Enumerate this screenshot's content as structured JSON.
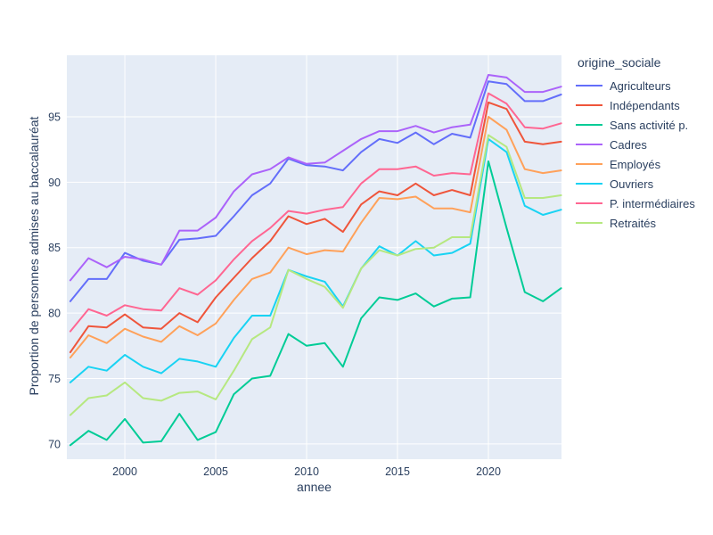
{
  "chart_data": {
    "type": "line",
    "title": "",
    "xlabel": "annee",
    "ylabel": "Proportion de personnes admises au baccalauréat",
    "legend_title": "origine_sociale",
    "legend_position": "right",
    "grid": true,
    "xlim": [
      1996.81,
      2024.02
    ],
    "ylim": [
      68.83,
      99.7
    ],
    "xticks": [
      2000,
      2005,
      2010,
      2015,
      2020
    ],
    "yticks": [
      70,
      75,
      80,
      85,
      90,
      95
    ],
    "colors": {
      "paper_bg": "#ffffff",
      "plot_bg": "#E5ECF6",
      "grid": "#ffffff",
      "text": "#2a3f5f"
    },
    "x": [
      1997,
      1998,
      1999,
      2000,
      2001,
      2002,
      2003,
      2004,
      2005,
      2006,
      2007,
      2008,
      2009,
      2010,
      2011,
      2012,
      2013,
      2014,
      2015,
      2016,
      2017,
      2018,
      2019,
      2020,
      2021,
      2022,
      2023,
      2024
    ],
    "series": [
      {
        "name": "Agriculteurs",
        "slug": "agriculteurs",
        "color": "#636EFA",
        "values": [
          80.9,
          82.6,
          82.6,
          84.6,
          84.0,
          83.7,
          85.6,
          85.7,
          85.9,
          87.4,
          89.0,
          89.9,
          91.8,
          91.3,
          91.2,
          90.9,
          92.3,
          93.3,
          93.0,
          93.8,
          92.9,
          93.7,
          93.4,
          97.7,
          97.5,
          96.2,
          96.2,
          96.7
        ]
      },
      {
        "name": "Indépendants",
        "slug": "independants",
        "color": "#EF553B",
        "values": [
          77.0,
          79.0,
          78.9,
          79.9,
          78.9,
          78.8,
          80.0,
          79.3,
          81.2,
          82.7,
          84.2,
          85.5,
          87.4,
          86.8,
          87.2,
          86.2,
          88.3,
          89.3,
          89.0,
          89.9,
          89.0,
          89.4,
          89.0,
          96.1,
          95.6,
          93.1,
          92.9,
          93.1
        ]
      },
      {
        "name": "Sans activité p.",
        "slug": "sans-activite-p",
        "color": "#00CC96",
        "values": [
          69.9,
          71.0,
          70.3,
          71.9,
          70.1,
          70.2,
          72.3,
          70.3,
          70.9,
          73.8,
          75.0,
          75.2,
          78.4,
          77.5,
          77.7,
          75.9,
          79.6,
          81.2,
          81.0,
          81.5,
          80.5,
          81.1,
          81.2,
          91.6,
          86.5,
          81.6,
          80.9,
          81.9
        ]
      },
      {
        "name": "Cadres",
        "slug": "cadres",
        "color": "#AB63FA",
        "values": [
          82.5,
          84.2,
          83.5,
          84.3,
          84.1,
          83.7,
          86.3,
          86.3,
          87.3,
          89.3,
          90.6,
          91.0,
          91.9,
          91.4,
          91.5,
          92.4,
          93.3,
          93.9,
          93.9,
          94.3,
          93.8,
          94.2,
          94.4,
          98.2,
          98.0,
          96.9,
          96.9,
          97.3
        ]
      },
      {
        "name": "Employés",
        "slug": "employes",
        "color": "#FFA15A",
        "values": [
          76.6,
          78.3,
          77.7,
          78.8,
          78.2,
          77.8,
          79.0,
          78.3,
          79.2,
          81.0,
          82.6,
          83.1,
          85.0,
          84.5,
          84.8,
          84.7,
          86.9,
          88.8,
          88.7,
          88.9,
          88.0,
          88.0,
          87.7,
          95.0,
          94.0,
          91.0,
          90.7,
          90.9
        ]
      },
      {
        "name": "Ouvriers",
        "slug": "ouvriers",
        "color": "#19D3F3",
        "values": [
          74.7,
          75.9,
          75.6,
          76.8,
          75.9,
          75.4,
          76.5,
          76.3,
          75.9,
          78.1,
          79.8,
          79.8,
          83.3,
          82.8,
          82.4,
          80.5,
          83.4,
          85.1,
          84.4,
          85.5,
          84.4,
          84.6,
          85.3,
          93.3,
          92.3,
          88.2,
          87.5,
          87.9
        ]
      },
      {
        "name": "P. intermédiaires",
        "slug": "p-intermediaires",
        "color": "#FF6692",
        "values": [
          78.6,
          80.3,
          79.8,
          80.6,
          80.3,
          80.2,
          81.9,
          81.4,
          82.5,
          84.1,
          85.5,
          86.5,
          87.8,
          87.6,
          87.9,
          88.1,
          89.9,
          91.0,
          91.0,
          91.2,
          90.5,
          90.7,
          90.6,
          96.8,
          96.0,
          94.2,
          94.1,
          94.5
        ]
      },
      {
        "name": "Retraités",
        "slug": "retraites",
        "color": "#B6E880",
        "values": [
          72.2,
          73.5,
          73.7,
          74.7,
          73.5,
          73.3,
          73.9,
          74.0,
          73.4,
          75.6,
          78.0,
          78.9,
          83.3,
          82.6,
          82.0,
          80.4,
          83.4,
          84.8,
          84.4,
          84.9,
          85.0,
          85.8,
          85.8,
          93.6,
          92.7,
          88.8,
          88.8,
          89.0
        ]
      }
    ]
  }
}
